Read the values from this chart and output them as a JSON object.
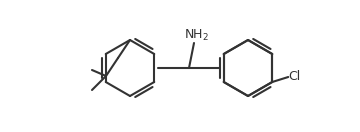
{
  "bg_color": "#ffffff",
  "line_color": "#333333",
  "text_color": "#333333",
  "line_width": 1.5,
  "fig_width": 3.6,
  "fig_height": 1.32,
  "dpi": 100
}
